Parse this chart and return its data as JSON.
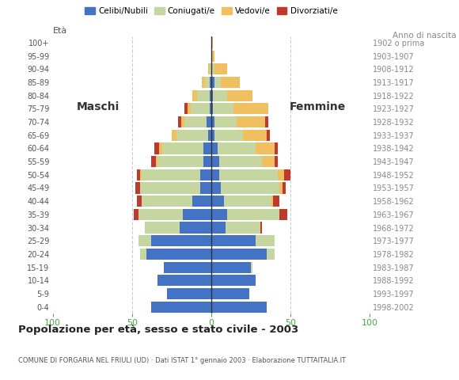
{
  "age_groups": [
    "0-4",
    "5-9",
    "10-14",
    "15-19",
    "20-24",
    "25-29",
    "30-34",
    "35-39",
    "40-44",
    "45-49",
    "50-54",
    "55-59",
    "60-64",
    "65-69",
    "70-74",
    "75-79",
    "80-84",
    "85-89",
    "90-94",
    "95-99",
    "100+"
  ],
  "birth_years": [
    "1998-2002",
    "1993-1997",
    "1988-1992",
    "1983-1987",
    "1978-1982",
    "1973-1977",
    "1968-1972",
    "1963-1967",
    "1958-1962",
    "1953-1957",
    "1948-1952",
    "1943-1947",
    "1938-1942",
    "1933-1937",
    "1928-1932",
    "1923-1927",
    "1918-1922",
    "1913-1917",
    "1908-1912",
    "1903-1907",
    "1902 o prima"
  ],
  "colors": {
    "celibe": "#4472c4",
    "coniugato": "#c5d6a0",
    "vedovo": "#f0c060",
    "divorziato": "#c0392b"
  },
  "males": {
    "celibe": [
      38,
      28,
      34,
      30,
      41,
      38,
      20,
      18,
      12,
      7,
      7,
      5,
      5,
      2,
      3,
      1,
      1,
      1,
      0,
      0,
      0
    ],
    "coniugato": [
      0,
      0,
      0,
      0,
      4,
      8,
      22,
      28,
      32,
      38,
      37,
      29,
      26,
      20,
      14,
      12,
      8,
      3,
      1,
      0,
      0
    ],
    "vedovo": [
      0,
      0,
      0,
      0,
      0,
      0,
      0,
      0,
      0,
      0,
      1,
      1,
      2,
      3,
      2,
      2,
      3,
      2,
      1,
      0,
      0
    ],
    "divorziato": [
      0,
      0,
      0,
      0,
      0,
      0,
      0,
      3,
      3,
      3,
      2,
      3,
      3,
      0,
      2,
      2,
      0,
      0,
      0,
      0,
      0
    ]
  },
  "females": {
    "celibe": [
      35,
      24,
      28,
      25,
      35,
      28,
      9,
      10,
      8,
      6,
      5,
      5,
      4,
      2,
      2,
      1,
      1,
      2,
      0,
      0,
      0
    ],
    "coniugato": [
      0,
      0,
      0,
      1,
      5,
      12,
      22,
      33,
      30,
      37,
      37,
      27,
      24,
      18,
      14,
      13,
      9,
      4,
      2,
      0,
      0
    ],
    "vedovo": [
      0,
      0,
      0,
      0,
      0,
      0,
      0,
      0,
      1,
      2,
      4,
      8,
      12,
      15,
      18,
      22,
      16,
      12,
      8,
      2,
      1
    ],
    "divorziato": [
      0,
      0,
      0,
      0,
      0,
      0,
      1,
      5,
      4,
      2,
      4,
      2,
      2,
      2,
      2,
      0,
      0,
      0,
      0,
      0,
      0
    ]
  },
  "title": "Popolazione per età, sesso e stato civile - 2003",
  "subtitle": "COMUNE DI FORGARIA NEL FRIULI (UD) · Dati ISTAT 1° gennaio 2003 · Elaborazione TUTTAITALIA.IT",
  "xlabel_left": "Maschi",
  "xlabel_right": "Femmine",
  "ylabel_left": "Età",
  "ylabel_right": "Anno di nascita",
  "xlim": 100,
  "background_color": "#ffffff",
  "grid_color": "#cccccc",
  "bar_height": 0.85
}
